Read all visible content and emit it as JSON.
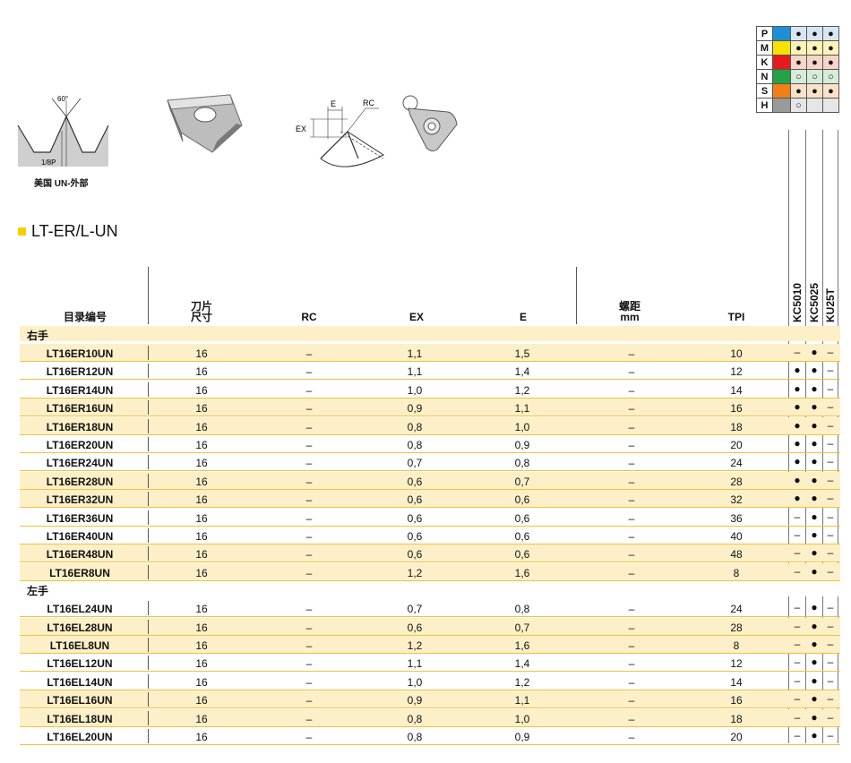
{
  "materials": [
    {
      "letter": "P",
      "color": "#1e8fd6",
      "g": [
        "●",
        "●",
        "●"
      ]
    },
    {
      "letter": "M",
      "color": "#f6e100",
      "g": [
        "●",
        "●",
        "●"
      ]
    },
    {
      "letter": "K",
      "color": "#e41a1c",
      "g": [
        "●",
        "●",
        "●"
      ]
    },
    {
      "letter": "N",
      "color": "#21a346",
      "g": [
        "○",
        "○",
        "○"
      ]
    },
    {
      "letter": "S",
      "color": "#f07f19",
      "g": [
        "●",
        "●",
        "●"
      ]
    },
    {
      "letter": "H",
      "color": "#9a9a9a",
      "g": [
        "○",
        "",
        ""
      ]
    }
  ],
  "diagram": {
    "angle_label": "60°",
    "pitch_label": "1/8P",
    "thread_caption": "美国 UN-外部",
    "e_label": "E",
    "rc_label": "RC",
    "ex_label": "EX"
  },
  "title": "LT-ER/L-UN",
  "headers": {
    "catalog": "目录编号",
    "insert_size_1": "刀片",
    "insert_size_2": "尺寸",
    "rc": "RC",
    "ex": "EX",
    "e": "E",
    "pitch_1": "螺距",
    "pitch_2": "mm",
    "tpi": "TPI",
    "grades": [
      "KC5010",
      "KC5025",
      "KU25T"
    ]
  },
  "sections": [
    {
      "label": "右手",
      "rows": [
        {
          "id": "LT16ER10UN",
          "size": "16",
          "rc": "–",
          "ex": "1,1",
          "e": "1,5",
          "pitch": "–",
          "tpi": "10",
          "g": [
            "–",
            "●",
            "–"
          ]
        },
        {
          "id": "LT16ER12UN",
          "size": "16",
          "rc": "–",
          "ex": "1,1",
          "e": "1,4",
          "pitch": "–",
          "tpi": "12",
          "g": [
            "●",
            "●",
            "–"
          ]
        },
        {
          "id": "LT16ER14UN",
          "size": "16",
          "rc": "–",
          "ex": "1,0",
          "e": "1,2",
          "pitch": "–",
          "tpi": "14",
          "g": [
            "●",
            "●",
            "–"
          ]
        },
        {
          "id": "LT16ER16UN",
          "size": "16",
          "rc": "–",
          "ex": "0,9",
          "e": "1,1",
          "pitch": "–",
          "tpi": "16",
          "g": [
            "●",
            "●",
            "–"
          ]
        },
        {
          "id": "LT16ER18UN",
          "size": "16",
          "rc": "–",
          "ex": "0,8",
          "e": "1,0",
          "pitch": "–",
          "tpi": "18",
          "g": [
            "●",
            "●",
            "–"
          ]
        },
        {
          "id": "LT16ER20UN",
          "size": "16",
          "rc": "–",
          "ex": "0,8",
          "e": "0,9",
          "pitch": "–",
          "tpi": "20",
          "g": [
            "●",
            "●",
            "–"
          ]
        },
        {
          "id": "LT16ER24UN",
          "size": "16",
          "rc": "–",
          "ex": "0,7",
          "e": "0,8",
          "pitch": "–",
          "tpi": "24",
          "g": [
            "●",
            "●",
            "–"
          ]
        },
        {
          "id": "LT16ER28UN",
          "size": "16",
          "rc": "–",
          "ex": "0,6",
          "e": "0,7",
          "pitch": "–",
          "tpi": "28",
          "g": [
            "●",
            "●",
            "–"
          ]
        },
        {
          "id": "LT16ER32UN",
          "size": "16",
          "rc": "–",
          "ex": "0,6",
          "e": "0,6",
          "pitch": "–",
          "tpi": "32",
          "g": [
            "●",
            "●",
            "–"
          ]
        },
        {
          "id": "LT16ER36UN",
          "size": "16",
          "rc": "–",
          "ex": "0,6",
          "e": "0,6",
          "pitch": "–",
          "tpi": "36",
          "g": [
            "–",
            "●",
            "–"
          ]
        },
        {
          "id": "LT16ER40UN",
          "size": "16",
          "rc": "–",
          "ex": "0,6",
          "e": "0,6",
          "pitch": "–",
          "tpi": "40",
          "g": [
            "–",
            "●",
            "–"
          ]
        },
        {
          "id": "LT16ER48UN",
          "size": "16",
          "rc": "–",
          "ex": "0,6",
          "e": "0,6",
          "pitch": "–",
          "tpi": "48",
          "g": [
            "–",
            "●",
            "–"
          ]
        },
        {
          "id": "LT16ER8UN",
          "size": "16",
          "rc": "–",
          "ex": "1,2",
          "e": "1,6",
          "pitch": "–",
          "tpi": "8",
          "g": [
            "–",
            "●",
            "–"
          ]
        }
      ]
    },
    {
      "label": "左手",
      "rows": [
        {
          "id": "LT16EL24UN",
          "size": "16",
          "rc": "–",
          "ex": "0,7",
          "e": "0,8",
          "pitch": "–",
          "tpi": "24",
          "g": [
            "–",
            "●",
            "–"
          ]
        },
        {
          "id": "LT16EL28UN",
          "size": "16",
          "rc": "–",
          "ex": "0,6",
          "e": "0,7",
          "pitch": "–",
          "tpi": "28",
          "g": [
            "–",
            "●",
            "–"
          ]
        },
        {
          "id": "LT16EL8UN",
          "size": "16",
          "rc": "–",
          "ex": "1,2",
          "e": "1,6",
          "pitch": "–",
          "tpi": "8",
          "g": [
            "–",
            "●",
            "–"
          ]
        },
        {
          "id": "LT16EL12UN",
          "size": "16",
          "rc": "–",
          "ex": "1,1",
          "e": "1,4",
          "pitch": "–",
          "tpi": "12",
          "g": [
            "–",
            "●",
            "–"
          ]
        },
        {
          "id": "LT16EL14UN",
          "size": "16",
          "rc": "–",
          "ex": "1,0",
          "e": "1,2",
          "pitch": "–",
          "tpi": "14",
          "g": [
            "–",
            "●",
            "–"
          ]
        },
        {
          "id": "LT16EL16UN",
          "size": "16",
          "rc": "–",
          "ex": "0,9",
          "e": "1,1",
          "pitch": "–",
          "tpi": "16",
          "g": [
            "–",
            "●",
            "–"
          ]
        },
        {
          "id": "LT16EL18UN",
          "size": "16",
          "rc": "–",
          "ex": "0,8",
          "e": "1,0",
          "pitch": "–",
          "tpi": "18",
          "g": [
            "–",
            "●",
            "–"
          ]
        },
        {
          "id": "LT16EL20UN",
          "size": "16",
          "rc": "–",
          "ex": "0,8",
          "e": "0,9",
          "pitch": "–",
          "tpi": "20",
          "g": [
            "–",
            "●",
            "–"
          ]
        }
      ]
    }
  ]
}
